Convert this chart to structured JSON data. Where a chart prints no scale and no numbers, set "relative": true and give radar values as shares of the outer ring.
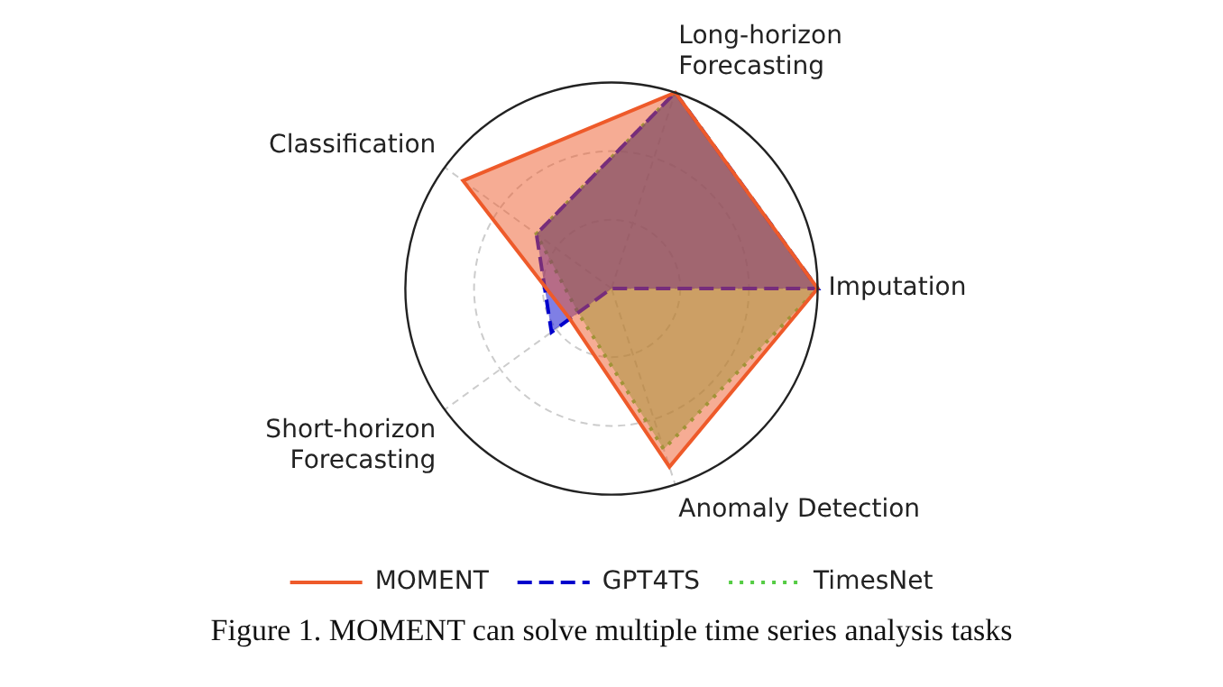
{
  "chart_data": {
    "type": "radar",
    "relative": true,
    "categories": [
      "Long-horizon Forecasting",
      "Imputation",
      "Anomaly Detection",
      "Short-horizon Forecasting",
      "Classification"
    ],
    "series": [
      {
        "name": "MOMENT",
        "color": "#ee5a2a",
        "line_style": "solid",
        "values": [
          1.0,
          1.0,
          0.91,
          0.25,
          0.89
        ]
      },
      {
        "name": "GPT4TS",
        "color": "#0000cc",
        "line_style": "dashed",
        "values": [
          1.0,
          1.0,
          0,
          0.36,
          0.45
        ]
      },
      {
        "name": "TimesNet",
        "color": "#55cc44",
        "line_style": "dotted",
        "values": [
          1.0,
          1.0,
          0.82,
          0.2,
          0.45
        ]
      }
    ],
    "grid": true,
    "legend": "bottom",
    "marker": "none",
    "annotations": [
      "Figure 1. MOMENT can solve multiple time series analysis tasks"
    ]
  }
}
